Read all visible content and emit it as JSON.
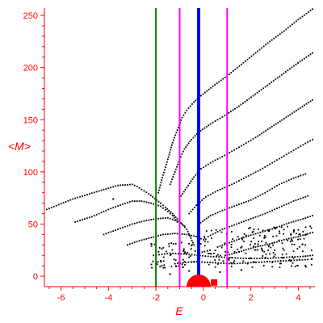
{
  "chart_data": {
    "type": "scatter",
    "xlabel": "E",
    "ylabel": "<M>",
    "xlim": [
      -6.7,
      4.7
    ],
    "ylim": [
      -10,
      257
    ],
    "xticks": [
      -6,
      -4,
      -2,
      0,
      2,
      4
    ],
    "yticks": [
      0,
      50,
      100,
      150,
      200,
      250
    ],
    "xtick_labels": [
      "-6",
      "-4",
      "-2",
      "0",
      "2",
      "4"
    ],
    "ytick_labels": [
      "0",
      "50",
      "100",
      "150",
      "200",
      "250"
    ],
    "grid": false,
    "axis_color": "#ff0000",
    "point_color": "#000000",
    "vertical_lines": [
      {
        "x": -2.0,
        "color": "#008000",
        "style": "thin"
      },
      {
        "x": -1.0,
        "color": "#ff00ff",
        "style": "thin"
      },
      {
        "x": -0.2,
        "color": "#0000ff",
        "style": "thick"
      },
      {
        "x": 1.0,
        "color": "#ff00ff",
        "style": "thin"
      }
    ],
    "red_markers": [
      {
        "x": -0.2,
        "y": -10,
        "size": "large",
        "shape": "half-disc",
        "color": "#ff0000"
      },
      {
        "x": 0.45,
        "y": -6,
        "size": "small",
        "shape": "square",
        "color": "#ff0000"
      }
    ],
    "series": [
      {
        "line_points": [
          [
            -6.6,
            64
          ],
          [
            -5.5,
            74
          ],
          [
            -4.5,
            81
          ],
          [
            -3.6,
            87
          ],
          [
            -3.0,
            88
          ],
          [
            -2.8,
            86
          ],
          [
            -2.3,
            79
          ],
          [
            -1.8,
            70
          ],
          [
            -1.6,
            66
          ],
          [
            -1.3,
            60
          ],
          [
            -1.1,
            55
          ],
          [
            -0.7,
            45
          ],
          [
            -0.4,
            30
          ]
        ]
      },
      {
        "line_points": [
          [
            -5.4,
            52
          ],
          [
            -4.7,
            57
          ],
          [
            -4.0,
            64
          ],
          [
            -3.4,
            69
          ],
          [
            -3.0,
            72
          ],
          [
            -2.6,
            72
          ],
          [
            -2.2,
            70
          ],
          [
            -1.8,
            67
          ],
          [
            -1.5,
            62
          ],
          [
            -1.3,
            58
          ],
          [
            -1.1,
            52
          ]
        ]
      },
      {
        "line_points": [
          [
            -4.2,
            40
          ],
          [
            -3.6,
            45
          ],
          [
            -3.0,
            50
          ],
          [
            -2.5,
            53
          ],
          [
            -2.0,
            55
          ],
          [
            -1.5,
            56
          ],
          [
            -1.0,
            52
          ],
          [
            -0.8,
            48
          ]
        ]
      },
      {
        "line_points": [
          [
            -3.2,
            30
          ],
          [
            -2.7,
            34
          ],
          [
            -2.2,
            37
          ],
          [
            -1.7,
            40
          ],
          [
            -1.2,
            41
          ],
          [
            -0.7,
            40
          ],
          [
            -0.3,
            38
          ],
          [
            0.0,
            35
          ]
        ]
      },
      {
        "line_points": [
          [
            -1.9,
            80
          ],
          [
            -1.7,
            97
          ],
          [
            -1.5,
            112
          ],
          [
            -1.3,
            128
          ],
          [
            -1.1,
            140
          ],
          [
            -0.9,
            152
          ],
          [
            -0.7,
            159
          ],
          [
            -0.4,
            167
          ],
          [
            -0.1,
            173
          ],
          [
            0.4,
            182
          ],
          [
            1.0,
            192
          ],
          [
            1.6,
            203
          ],
          [
            2.2,
            214
          ],
          [
            2.8,
            225
          ],
          [
            3.4,
            235
          ],
          [
            4.0,
            246
          ],
          [
            4.6,
            256
          ]
        ]
      },
      {
        "line_points": [
          [
            -1.4,
            88
          ],
          [
            -1.2,
            100
          ],
          [
            -1.0,
            112
          ],
          [
            -0.8,
            122
          ],
          [
            -0.5,
            131
          ],
          [
            -0.2,
            138
          ],
          [
            0.3,
            146
          ],
          [
            0.9,
            154
          ],
          [
            1.5,
            163
          ],
          [
            2.1,
            173
          ],
          [
            2.7,
            183
          ],
          [
            3.3,
            193
          ],
          [
            3.9,
            203
          ],
          [
            4.6,
            214
          ]
        ]
      },
      {
        "line_points": [
          [
            -1.0,
            75
          ],
          [
            -0.7,
            85
          ],
          [
            -0.4,
            95
          ],
          [
            -0.1,
            103
          ],
          [
            0.4,
            110
          ],
          [
            1.0,
            117
          ],
          [
            1.6,
            125
          ],
          [
            2.2,
            133
          ],
          [
            2.8,
            142
          ],
          [
            3.4,
            151
          ],
          [
            4.0,
            160
          ],
          [
            4.6,
            169
          ]
        ]
      },
      {
        "line_points": [
          [
            -0.6,
            60
          ],
          [
            -0.3,
            68
          ],
          [
            0.1,
            76
          ],
          [
            0.6,
            82
          ],
          [
            1.2,
            88
          ],
          [
            1.8,
            95
          ],
          [
            2.4,
            102
          ],
          [
            3.0,
            110
          ],
          [
            3.6,
            118
          ],
          [
            4.2,
            126
          ],
          [
            4.6,
            131
          ]
        ]
      },
      {
        "line_points": [
          [
            -0.2,
            50
          ],
          [
            0.3,
            58
          ],
          [
            0.8,
            63
          ],
          [
            1.4,
            68
          ],
          [
            2.0,
            73
          ],
          [
            2.6,
            80
          ],
          [
            3.2,
            88
          ],
          [
            3.8,
            94
          ],
          [
            4.3,
            98
          ]
        ]
      },
      {
        "line_points": [
          [
            0.2,
            38
          ],
          [
            0.8,
            45
          ],
          [
            1.4,
            50
          ],
          [
            2.0,
            55
          ],
          [
            2.6,
            60
          ],
          [
            3.2,
            66
          ],
          [
            3.8,
            72
          ],
          [
            4.4,
            77
          ]
        ]
      },
      {
        "line_points": [
          [
            0.6,
            28
          ],
          [
            1.2,
            33
          ],
          [
            1.8,
            38
          ],
          [
            2.4,
            42
          ],
          [
            3.0,
            46
          ],
          [
            3.6,
            51
          ],
          [
            4.2,
            55
          ],
          [
            4.6,
            58
          ]
        ]
      },
      {
        "line_points": [
          [
            1.0,
            20
          ],
          [
            1.6,
            24
          ],
          [
            2.2,
            28
          ],
          [
            2.8,
            31
          ],
          [
            3.4,
            35
          ],
          [
            4.0,
            38
          ],
          [
            4.6,
            42
          ]
        ]
      },
      {
        "line_points": [
          [
            -2.1,
            20
          ],
          [
            -1.4,
            22
          ],
          [
            -0.6,
            21
          ],
          [
            0.2,
            19
          ],
          [
            1.0,
            18
          ],
          [
            1.8,
            17
          ],
          [
            2.6,
            17
          ],
          [
            3.4,
            18
          ],
          [
            4.2,
            19
          ],
          [
            4.6,
            20
          ]
        ]
      },
      {
        "line_points": [
          [
            -1.2,
            12
          ],
          [
            -0.4,
            14
          ],
          [
            0.4,
            13
          ],
          [
            1.2,
            12
          ],
          [
            2.0,
            13
          ],
          [
            2.8,
            14
          ],
          [
            3.6,
            15
          ],
          [
            4.4,
            16
          ]
        ]
      }
    ],
    "isolated_points": [
      [
        -3.8,
        74
      ],
      [
        -1.4,
        2
      ],
      [
        -1.0,
        -3
      ],
      [
        -0.6,
        5
      ],
      [
        0.7,
        4
      ],
      [
        1.6,
        6
      ]
    ]
  }
}
